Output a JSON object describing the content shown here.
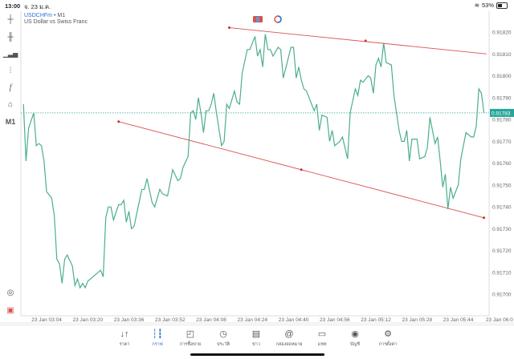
{
  "status_bar": {
    "time": "13:00",
    "date": "จ. 23 ม.ค.",
    "battery": "53%",
    "battery_level": 0.53
  },
  "symbol": {
    "name": "USDCHFm",
    "timeframe": "M1",
    "description": "US Dollar vs Swiss Franc",
    "separator": "•"
  },
  "toolbar": {
    "timeframe_label": "M1",
    "icons": [
      "crosshair-icon",
      "candlestick-icon",
      "chart-type-icon",
      "indicators-icon",
      "function-icon",
      "objects-icon",
      "timeframe",
      "quick-trade-icon",
      "mql5-icon"
    ]
  },
  "colors": {
    "line": "#4caf88",
    "trendline": "#d9534f",
    "price_tag": "#26a69a",
    "accent": "#2a6fd6"
  },
  "current_price": "0.91783",
  "chart_data": {
    "type": "line",
    "title": "",
    "xlabel": "",
    "ylabel": "",
    "grid": false,
    "ylim": [
      0.91696,
      0.91834
    ],
    "xlim": [
      "02:54",
      "05:56"
    ],
    "yticks": [
      "0.91820",
      "0.91810",
      "0.91800",
      "0.91790",
      "0.91780",
      "0.91770",
      "0.91760",
      "0.91750",
      "0.91740",
      "0.91730",
      "0.91720",
      "0.91710",
      "0.91700"
    ],
    "xticks": [
      {
        "t": "03:04",
        "label": "23 Jan 03:04"
      },
      {
        "t": "03:20",
        "label": "23 Jan 03:20"
      },
      {
        "t": "03:36",
        "label": "23 Jan 03:36"
      },
      {
        "t": "03:52",
        "label": "23 Jan 03:52"
      },
      {
        "t": "04:08",
        "label": "23 Jan 04:08"
      },
      {
        "t": "04:24",
        "label": "23 Jan 04:24"
      },
      {
        "t": "04:40",
        "label": "23 Jan 04:40"
      },
      {
        "t": "04:56",
        "label": "23 Jan 04:56"
      },
      {
        "t": "05:12",
        "label": "23 Jan 05:12"
      },
      {
        "t": "05:28",
        "label": "23 Jan 05:28"
      },
      {
        "t": "05:44",
        "label": "23 Jan 05:44"
      },
      {
        "t": "06:00",
        "label": "23 Jan 06:0"
      }
    ],
    "series": [
      {
        "x": [
          "02:55",
          "02:56",
          "02:57",
          "02:59",
          "03:00",
          "03:01",
          "03:02",
          "03:03",
          "03:04",
          "03:06",
          "03:07",
          "03:08",
          "03:09",
          "03:10",
          "03:11",
          "03:12",
          "03:14",
          "03:15",
          "03:16",
          "03:17",
          "03:18",
          "03:19",
          "03:20",
          "03:25",
          "03:26",
          "03:27",
          "03:28",
          "03:29",
          "03:30",
          "03:32",
          "03:33",
          "03:34",
          "03:35",
          "03:36",
          "03:37",
          "03:38",
          "03:41",
          "03:42",
          "03:43",
          "03:45",
          "03:46",
          "03:48",
          "03:49",
          "03:51",
          "03:52",
          "03:53",
          "03:55",
          "03:56",
          "03:57",
          "03:59",
          "04:00",
          "04:01",
          "04:02",
          "04:03",
          "04:04",
          "04:05",
          "04:06",
          "04:07",
          "04:08",
          "04:09",
          "04:10",
          "04:12",
          "04:13",
          "04:14",
          "04:15",
          "04:17",
          "04:18",
          "04:19",
          "04:20",
          "04:22",
          "04:23",
          "04:25",
          "04:26",
          "04:27",
          "04:28",
          "04:29",
          "04:30",
          "04:31",
          "04:32",
          "04:34",
          "04:35",
          "04:36",
          "04:39",
          "04:40",
          "04:41",
          "04:42",
          "04:43",
          "04:44",
          "04:45",
          "04:47",
          "04:48",
          "04:49",
          "04:50",
          "04:51",
          "04:53",
          "04:54",
          "04:55",
          "04:56",
          "04:58",
          "04:59",
          "05:01",
          "05:02",
          "05:04",
          "05:05",
          "05:06",
          "05:07",
          "05:09",
          "05:10",
          "05:11",
          "05:12",
          "05:13",
          "05:14",
          "05:15",
          "05:16",
          "05:18",
          "05:19",
          "05:21",
          "05:22",
          "05:23",
          "05:24",
          "05:25",
          "05:26",
          "05:28",
          "05:29",
          "05:31",
          "05:32",
          "05:33",
          "05:35",
          "05:36",
          "05:37",
          "05:38",
          "05:39",
          "05:40",
          "05:41",
          "05:42",
          "05:44",
          "05:45",
          "05:47",
          "05:49",
          "05:50",
          "05:51",
          "05:52",
          "05:53",
          "05:54"
        ],
        "y": [
          0.91787,
          0.91761,
          0.91776,
          0.91783,
          0.91768,
          0.91769,
          0.91768,
          0.91761,
          0.91747,
          0.91744,
          0.91736,
          0.91716,
          0.91714,
          0.91705,
          0.91716,
          0.91718,
          0.91713,
          0.91704,
          0.91707,
          0.91703,
          0.91705,
          0.91703,
          0.91706,
          0.91711,
          0.91708,
          0.91735,
          0.9174,
          0.9174,
          0.91734,
          0.91741,
          0.91741,
          0.91743,
          0.91733,
          0.91738,
          0.9173,
          0.91731,
          0.91748,
          0.91748,
          0.91753,
          0.91742,
          0.9174,
          0.91748,
          0.91746,
          0.91745,
          0.91751,
          0.91757,
          0.91752,
          0.91753,
          0.91758,
          0.91763,
          0.91783,
          0.91784,
          0.9178,
          0.9179,
          0.91783,
          0.91774,
          0.91784,
          0.91784,
          0.91787,
          0.91792,
          0.91783,
          0.91768,
          0.9177,
          0.91787,
          0.91785,
          0.91793,
          0.91788,
          0.91787,
          0.91801,
          0.91812,
          0.91812,
          0.91818,
          0.91809,
          0.91812,
          0.91804,
          0.91819,
          0.91812,
          0.91812,
          0.91809,
          0.91813,
          0.91812,
          0.91799,
          0.91813,
          0.91813,
          0.91799,
          0.91804,
          0.91798,
          0.91794,
          0.91793,
          0.91787,
          0.91784,
          0.91787,
          0.91775,
          0.91782,
          0.91781,
          0.9177,
          0.91775,
          0.91768,
          0.9177,
          0.91772,
          0.91762,
          0.91783,
          0.91794,
          0.91791,
          0.91798,
          0.91797,
          0.918,
          0.91799,
          0.91792,
          0.91805,
          0.91808,
          0.91804,
          0.91815,
          0.91806,
          0.91805,
          0.91791,
          0.91775,
          0.9177,
          0.9177,
          0.91775,
          0.91761,
          0.91771,
          0.91771,
          0.91762,
          0.91763,
          0.91767,
          0.91781,
          0.91769,
          0.91772,
          0.91761,
          0.91749,
          0.91755,
          0.91739,
          0.91749,
          0.91744,
          0.9175,
          0.91762,
          0.91774,
          0.91772,
          0.91772,
          0.91777,
          0.91794,
          0.91792,
          0.91783
        ]
      }
    ],
    "trendlines": [
      {
        "points": [
          [
            "04:15",
            0.91822
          ],
          [
            "05:08",
            0.91816
          ],
          [
            "05:55",
            0.9181
          ]
        ],
        "anchors": [
          0,
          1
        ]
      },
      {
        "points": [
          [
            "03:32",
            0.91779
          ],
          [
            "04:43",
            0.91757
          ],
          [
            "05:54",
            0.91735
          ]
        ],
        "anchors": [
          0,
          1,
          2
        ]
      }
    ],
    "current_price_line": 0.91783
  },
  "bottom_nav": [
    {
      "label": "ราคา",
      "icon": "quotes-icon",
      "glyph": "↓↑"
    },
    {
      "label": "กราฟ",
      "icon": "chart-icon",
      "glyph": "┆┇",
      "active": true
    },
    {
      "label": "การซื้อขาย",
      "icon": "trade-icon",
      "glyph": "◰"
    },
    {
      "label": "ประวัติ",
      "icon": "history-icon",
      "glyph": "◷"
    },
    {
      "label": "ข่าว",
      "icon": "news-icon",
      "glyph": "▤"
    },
    {
      "label": "กล่องจดหมาย",
      "icon": "mailbox-icon",
      "glyph": "@"
    },
    {
      "label": "แชท",
      "icon": "chat-icon",
      "glyph": "▭"
    },
    {
      "label": "บัญชี",
      "icon": "account-icon",
      "glyph": "◉"
    },
    {
      "label": "การตั้งค่า",
      "icon": "settings-icon",
      "glyph": "⚙"
    }
  ]
}
